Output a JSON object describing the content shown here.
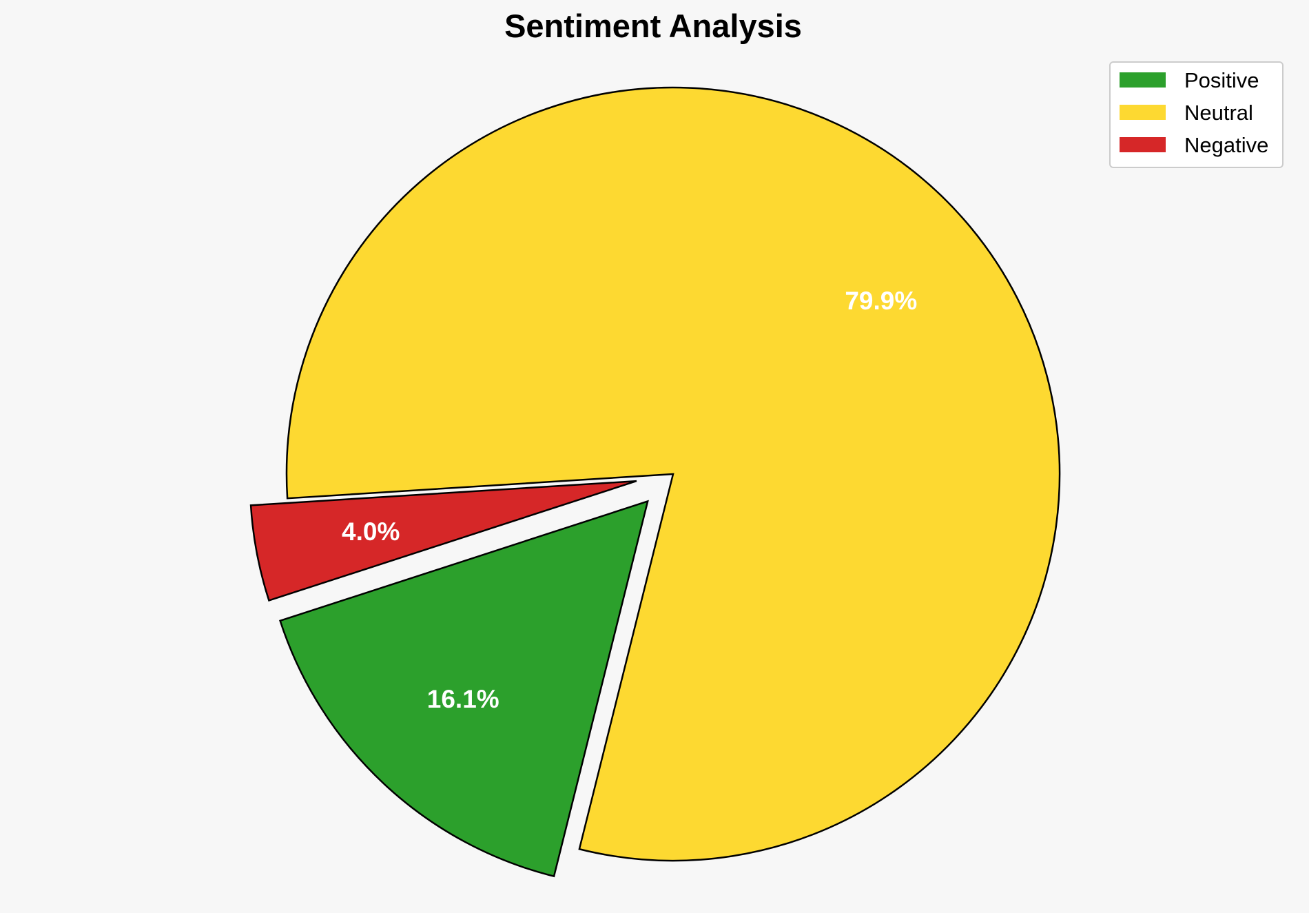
{
  "chart_data": {
    "type": "pie",
    "title": "Sentiment Analysis",
    "categories": [
      "Positive",
      "Neutral",
      "Negative"
    ],
    "values": [
      16.1,
      79.9,
      4.0
    ],
    "labels": [
      "16.1%",
      "79.9%",
      "4.0%"
    ],
    "colors": [
      "#2ca02c",
      "#fdd931",
      "#d62728"
    ],
    "exploded": [
      true,
      false,
      true
    ],
    "start_angle_deg": 198,
    "direction": "counterclockwise",
    "legend": {
      "position": "top-right",
      "entries": [
        "Positive",
        "Neutral",
        "Negative"
      ]
    }
  }
}
